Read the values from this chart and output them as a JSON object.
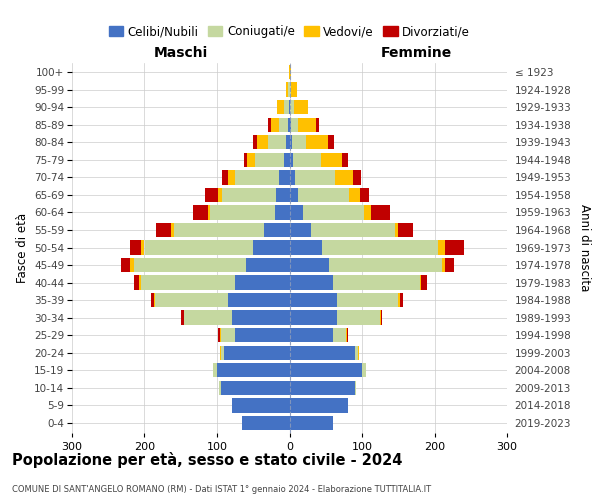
{
  "age_groups": [
    "0-4",
    "5-9",
    "10-14",
    "15-19",
    "20-24",
    "25-29",
    "30-34",
    "35-39",
    "40-44",
    "45-49",
    "50-54",
    "55-59",
    "60-64",
    "65-69",
    "70-74",
    "75-79",
    "80-84",
    "85-89",
    "90-94",
    "95-99",
    "100+"
  ],
  "birth_years": [
    "2019-2023",
    "2014-2018",
    "2009-2013",
    "2004-2008",
    "1999-2003",
    "1994-1998",
    "1989-1993",
    "1984-1988",
    "1979-1983",
    "1974-1978",
    "1969-1973",
    "1964-1968",
    "1959-1963",
    "1954-1958",
    "1949-1953",
    "1944-1948",
    "1939-1943",
    "1934-1938",
    "1929-1933",
    "1924-1928",
    "≤ 1923"
  ],
  "colors": {
    "celibi": "#4472c4",
    "coniugati": "#c5d8a0",
    "vedovi": "#ffc000",
    "divorziati": "#c00000"
  },
  "maschi": {
    "celibi": [
      65,
      80,
      95,
      100,
      90,
      75,
      80,
      85,
      75,
      60,
      50,
      35,
      20,
      18,
      15,
      8,
      5,
      2,
      1,
      0,
      0
    ],
    "coniugati": [
      0,
      0,
      2,
      5,
      5,
      20,
      65,
      100,
      130,
      155,
      150,
      125,
      90,
      75,
      60,
      40,
      25,
      12,
      6,
      2,
      0
    ],
    "vedovi": [
      0,
      0,
      0,
      0,
      1,
      1,
      1,
      2,
      2,
      5,
      5,
      4,
      3,
      5,
      10,
      10,
      15,
      12,
      10,
      3,
      1
    ],
    "divorziati": [
      0,
      0,
      0,
      0,
      0,
      2,
      4,
      4,
      8,
      12,
      15,
      20,
      20,
      18,
      8,
      5,
      5,
      3,
      0,
      0,
      0
    ]
  },
  "femmine": {
    "celibi": [
      60,
      80,
      90,
      100,
      90,
      60,
      65,
      65,
      60,
      55,
      45,
      30,
      18,
      12,
      8,
      5,
      3,
      2,
      1,
      0,
      0
    ],
    "coniugati": [
      0,
      0,
      2,
      5,
      5,
      18,
      60,
      85,
      120,
      155,
      160,
      115,
      85,
      70,
      55,
      38,
      20,
      10,
      5,
      2,
      0
    ],
    "vedovi": [
      0,
      0,
      0,
      0,
      1,
      1,
      1,
      2,
      2,
      5,
      10,
      5,
      10,
      15,
      25,
      30,
      30,
      25,
      20,
      8,
      2
    ],
    "divorziati": [
      0,
      0,
      0,
      0,
      0,
      2,
      2,
      4,
      8,
      12,
      25,
      20,
      25,
      12,
      10,
      8,
      8,
      3,
      0,
      0,
      0
    ]
  },
  "title": "Popolazione per età, sesso e stato civile - 2024",
  "subtitle": "COMUNE DI SANT'ANGELO ROMANO (RM) - Dati ISTAT 1° gennaio 2024 - Elaborazione TUTTITALIA.IT",
  "xlabel_left": "Maschi",
  "xlabel_right": "Femmine",
  "ylabel_left": "Fasce di età",
  "ylabel_right": "Anni di nascita",
  "xlim": 300,
  "legend_labels": [
    "Celibi/Nubili",
    "Coniugati/e",
    "Vedovi/e",
    "Divorziati/e"
  ],
  "background_color": "#ffffff",
  "grid_color": "#cccccc"
}
